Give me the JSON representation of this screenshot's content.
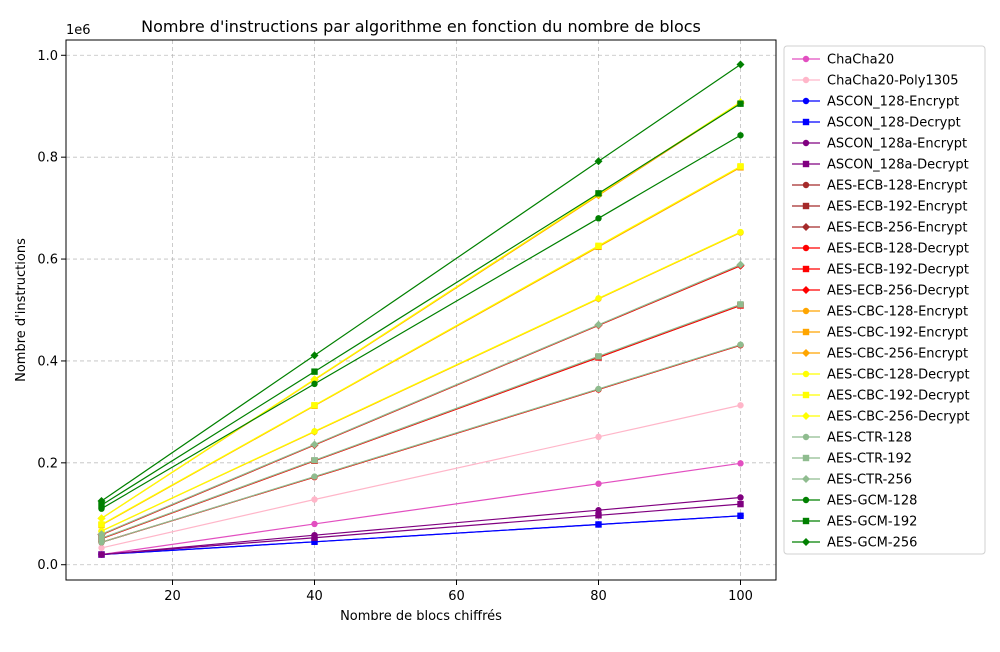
{
  "chart_data": {
    "type": "line",
    "title": "Nombre d'instructions par algorithme en fonction du nombre de blocs",
    "xlabel": "Nombre de blocs chiffrés",
    "ylabel": "Nombre d'instructions",
    "y_multiplier_label": "1e6",
    "x": [
      10,
      40,
      80,
      100
    ],
    "xlim": [
      5,
      105
    ],
    "ylim": [
      -30000,
      1030000
    ],
    "xticks": [
      20,
      40,
      60,
      80,
      100
    ],
    "yticks": [
      0.0,
      0.2,
      0.4,
      0.6,
      0.8,
      1.0
    ],
    "ytick_labels": [
      "0.0",
      "0.2",
      "0.4",
      "0.6",
      "0.8",
      "1.0"
    ],
    "grid": true,
    "legend_position": "outside-right",
    "series": [
      {
        "name": "ChaCha20",
        "color": "#e24fc0",
        "marker": "circle",
        "values": [
          20000,
          80000,
          159000,
          199000
        ]
      },
      {
        "name": "ChaCha20-Poly1305",
        "color": "#ffb6c9",
        "marker": "circle",
        "values": [
          33000,
          128000,
          251000,
          313000
        ]
      },
      {
        "name": "ASCON_128-Encrypt",
        "color": "#0000ff",
        "marker": "circle",
        "values": [
          20000,
          45000,
          79000,
          96000
        ]
      },
      {
        "name": "ASCON_128-Decrypt",
        "color": "#0000ff",
        "marker": "square",
        "values": [
          20000,
          45000,
          79000,
          96000
        ]
      },
      {
        "name": "ASCON_128a-Encrypt",
        "color": "#800080",
        "marker": "circle",
        "values": [
          20000,
          58000,
          107000,
          132000
        ]
      },
      {
        "name": "ASCON_128a-Decrypt",
        "color": "#800080",
        "marker": "square",
        "values": [
          20000,
          53000,
          97000,
          119000
        ]
      },
      {
        "name": "AES-ECB-128-Encrypt",
        "color": "#a52a2a",
        "marker": "circle",
        "values": [
          44000,
          172000,
          344000,
          431000
        ]
      },
      {
        "name": "AES-ECB-192-Encrypt",
        "color": "#a52a2a",
        "marker": "square",
        "values": [
          51000,
          204000,
          407000,
          509000
        ]
      },
      {
        "name": "AES-ECB-256-Encrypt",
        "color": "#a52a2a",
        "marker": "diamond",
        "values": [
          59000,
          235000,
          470000,
          587000
        ]
      },
      {
        "name": "AES-ECB-128-Decrypt",
        "color": "#ff0000",
        "marker": "circle",
        "values": [
          44000,
          172000,
          344000,
          431000
        ]
      },
      {
        "name": "AES-ECB-192-Decrypt",
        "color": "#ff0000",
        "marker": "square",
        "values": [
          51000,
          204000,
          407000,
          509000
        ]
      },
      {
        "name": "AES-ECB-256-Decrypt",
        "color": "#ff0000",
        "marker": "diamond",
        "values": [
          59000,
          235000,
          470000,
          587000
        ]
      },
      {
        "name": "AES-CBC-128-Encrypt",
        "color": "#ffa500",
        "marker": "circle",
        "values": [
          66000,
          261000,
          522000,
          652000
        ]
      },
      {
        "name": "AES-CBC-192-Encrypt",
        "color": "#ffa500",
        "marker": "square",
        "values": [
          78000,
          312000,
          624000,
          780000
        ]
      },
      {
        "name": "AES-CBC-256-Encrypt",
        "color": "#ffa500",
        "marker": "diamond",
        "values": [
          91000,
          363000,
          725000,
          906000
        ]
      },
      {
        "name": "AES-CBC-128-Decrypt",
        "color": "#ffff00",
        "marker": "circle",
        "values": [
          66000,
          262000,
          523000,
          653000
        ]
      },
      {
        "name": "AES-CBC-192-Decrypt",
        "color": "#ffff00",
        "marker": "square",
        "values": [
          79000,
          313000,
          626000,
          782000
        ]
      },
      {
        "name": "AES-CBC-256-Decrypt",
        "color": "#ffff00",
        "marker": "diamond",
        "values": [
          91000,
          364000,
          727000,
          908000
        ]
      },
      {
        "name": "AES-CTR-128",
        "color": "#8fbc8f",
        "marker": "circle",
        "values": [
          44000,
          173000,
          345000,
          432000
        ]
      },
      {
        "name": "AES-CTR-192",
        "color": "#8fbc8f",
        "marker": "square",
        "values": [
          52000,
          205000,
          409000,
          511000
        ]
      },
      {
        "name": "AES-CTR-256",
        "color": "#8fbc8f",
        "marker": "diamond",
        "values": [
          60000,
          236000,
          471000,
          589000
        ]
      },
      {
        "name": "AES-GCM-128",
        "color": "#008000",
        "marker": "circle",
        "values": [
          110000,
          355000,
          680000,
          843000
        ]
      },
      {
        "name": "AES-GCM-192",
        "color": "#008000",
        "marker": "square",
        "values": [
          117000,
          379000,
          729000,
          905000
        ]
      },
      {
        "name": "AES-GCM-256",
        "color": "#008000",
        "marker": "diamond",
        "values": [
          125000,
          411000,
          792000,
          982000
        ]
      }
    ]
  }
}
